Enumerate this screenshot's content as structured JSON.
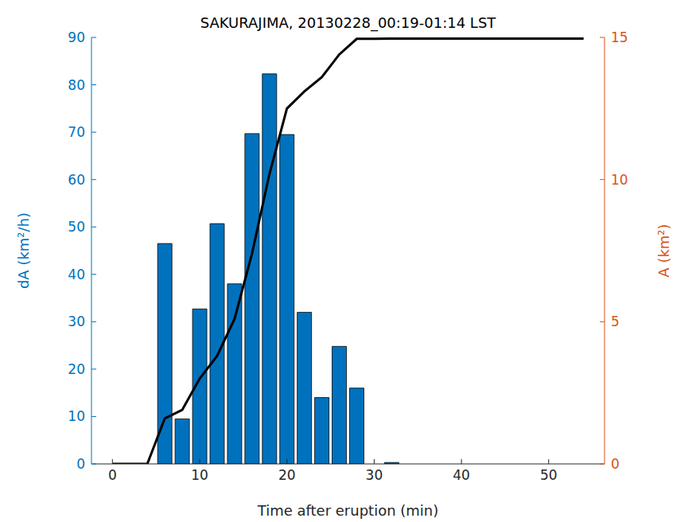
{
  "chart_data": {
    "type": "combo",
    "title": "SAKURAJIMA, 20130228_00:19-01:14 LST",
    "xlabel": "Time after eruption (min)",
    "ylabel": "dA (km²/h)",
    "y2label": "A (km²)",
    "xlim": [
      -2.4,
      56.4
    ],
    "xticks": [
      0,
      10,
      20,
      30,
      40,
      50
    ],
    "ylim": [
      0,
      90
    ],
    "yticks": [
      0,
      10,
      20,
      30,
      40,
      50,
      60,
      70,
      80,
      90
    ],
    "y2lim": [
      0,
      15
    ],
    "y2ticks": [
      0,
      5,
      10,
      15
    ],
    "series": [
      {
        "type": "bar",
        "color": "#0072bd",
        "x": [
          6,
          8,
          10,
          12,
          14,
          16,
          18,
          20,
          22,
          24,
          26,
          28,
          30,
          32
        ],
        "values": [
          46.5,
          9.5,
          32.7,
          50.7,
          38,
          69.7,
          82.3,
          69.5,
          32,
          14,
          24.8,
          16,
          0,
          0.3
        ]
      },
      {
        "type": "line",
        "axis": "y2",
        "color": "#000000",
        "x": [
          0,
          2,
          4,
          6,
          8,
          10,
          12,
          14,
          16,
          18,
          20,
          22,
          24,
          26,
          28,
          30,
          32,
          34,
          36,
          38,
          40,
          42,
          44,
          46,
          48,
          50,
          52,
          54
        ],
        "values": [
          0,
          0,
          0,
          1.6,
          1.9,
          3.0,
          3.8,
          5.1,
          7.4,
          10.2,
          12.5,
          13.1,
          13.6,
          14.4,
          14.95,
          14.95,
          14.96,
          14.96,
          14.96,
          14.96,
          14.96,
          14.96,
          14.96,
          14.96,
          14.96,
          14.96,
          14.96,
          14.96
        ]
      }
    ]
  }
}
